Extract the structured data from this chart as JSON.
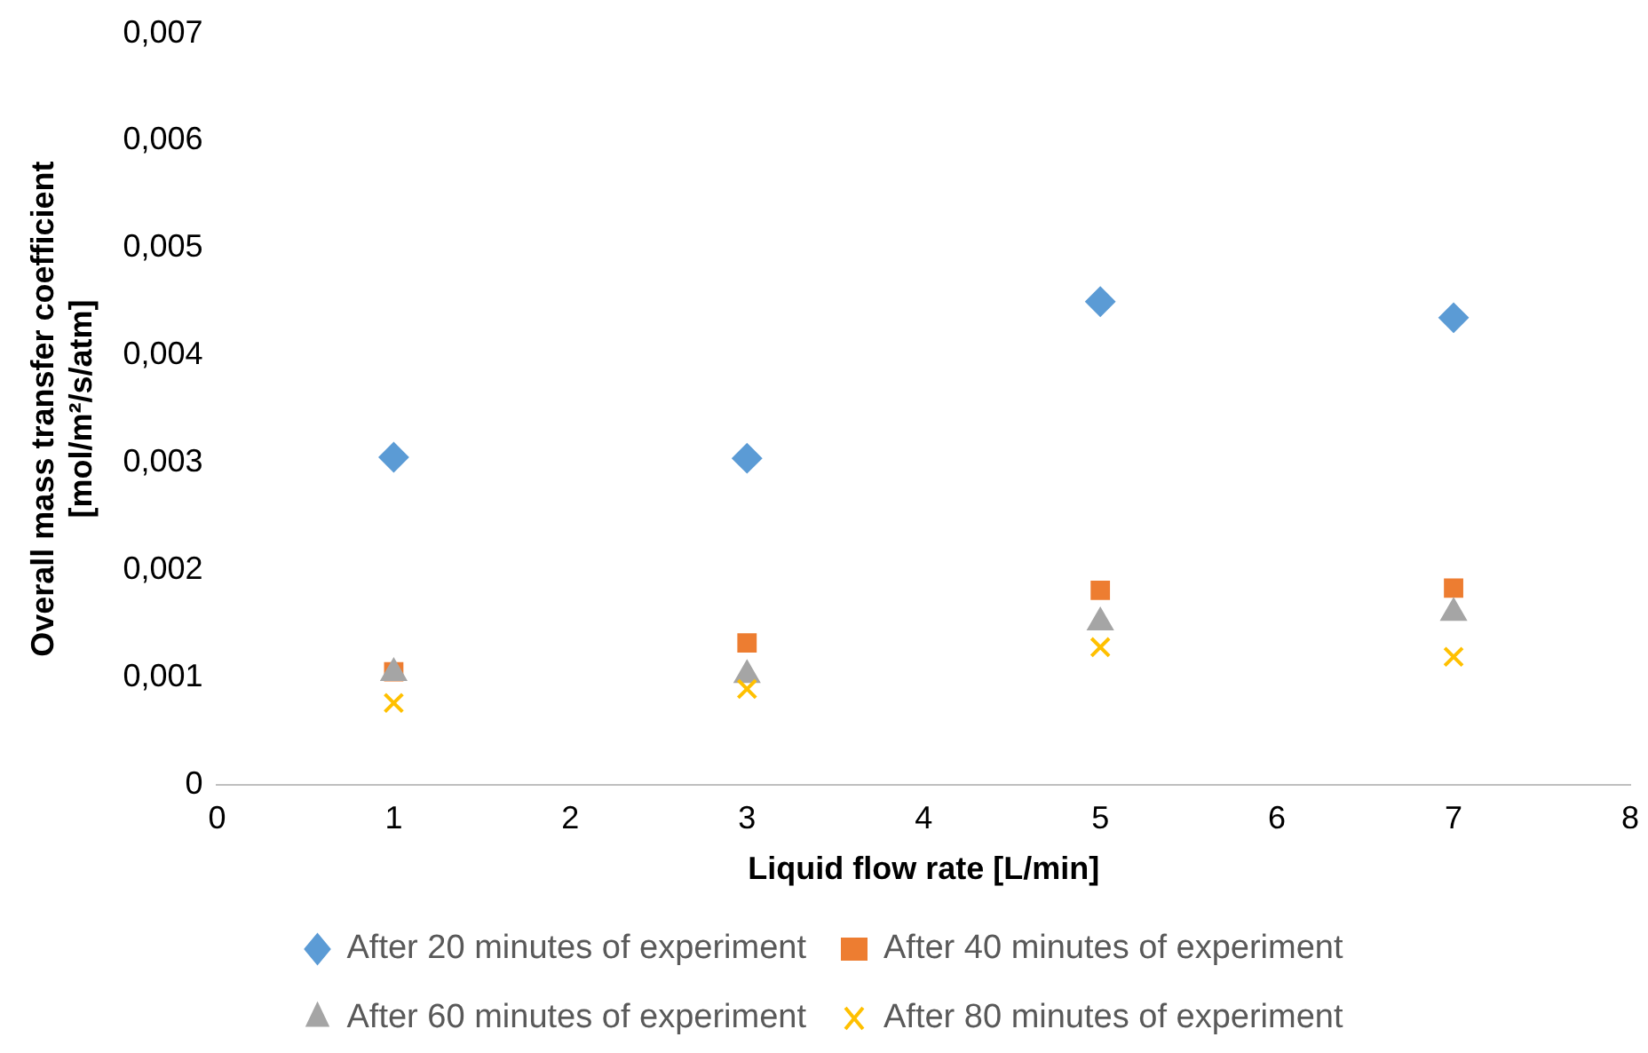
{
  "chart_data": {
    "type": "scatter",
    "xlabel": "Liquid flow rate [L/min]",
    "ylabel": "Overall mass transfer coefficient\n[mol/m²/s/atm]",
    "xlim": [
      0,
      8
    ],
    "xticks": [
      0,
      1,
      2,
      3,
      4,
      5,
      6,
      7,
      8
    ],
    "ylim": [
      0,
      0.007
    ],
    "yticks": [
      {
        "value": 0,
        "label": "0"
      },
      {
        "value": 0.001,
        "label": "0,001"
      },
      {
        "value": 0.002,
        "label": "0,002"
      },
      {
        "value": 0.003,
        "label": "0,003"
      },
      {
        "value": 0.004,
        "label": "0,004"
      },
      {
        "value": 0.005,
        "label": "0,005"
      },
      {
        "value": 0.006,
        "label": "0,006"
      },
      {
        "value": 0.007,
        "label": "0,007"
      }
    ],
    "grid": false,
    "legend": "bottom",
    "series": [
      {
        "name": "After 20 minutes of experiment",
        "color": "#5b9bd5",
        "marker": "diamond",
        "x": [
          1,
          3,
          5,
          7
        ],
        "values": [
          0.00305,
          0.00304,
          0.0045,
          0.00435
        ]
      },
      {
        "name": "After 40 minutes of experiment",
        "color": "#ed7d31",
        "marker": "square",
        "x": [
          1,
          3,
          5,
          7
        ],
        "values": [
          0.00105,
          0.00132,
          0.00181,
          0.00183
        ]
      },
      {
        "name": "After 60 minutes of experiment",
        "color": "#a5a5a5",
        "marker": "triangle",
        "x": [
          1,
          3,
          5,
          7
        ],
        "values": [
          0.00104,
          0.00102,
          0.00151,
          0.0016
        ]
      },
      {
        "name": "After 80 minutes of experiment",
        "color": "#ffc000",
        "marker": "cross",
        "x": [
          1,
          3,
          5,
          7
        ],
        "values": [
          0.00076,
          0.00089,
          0.00128,
          0.00119
        ]
      }
    ]
  }
}
